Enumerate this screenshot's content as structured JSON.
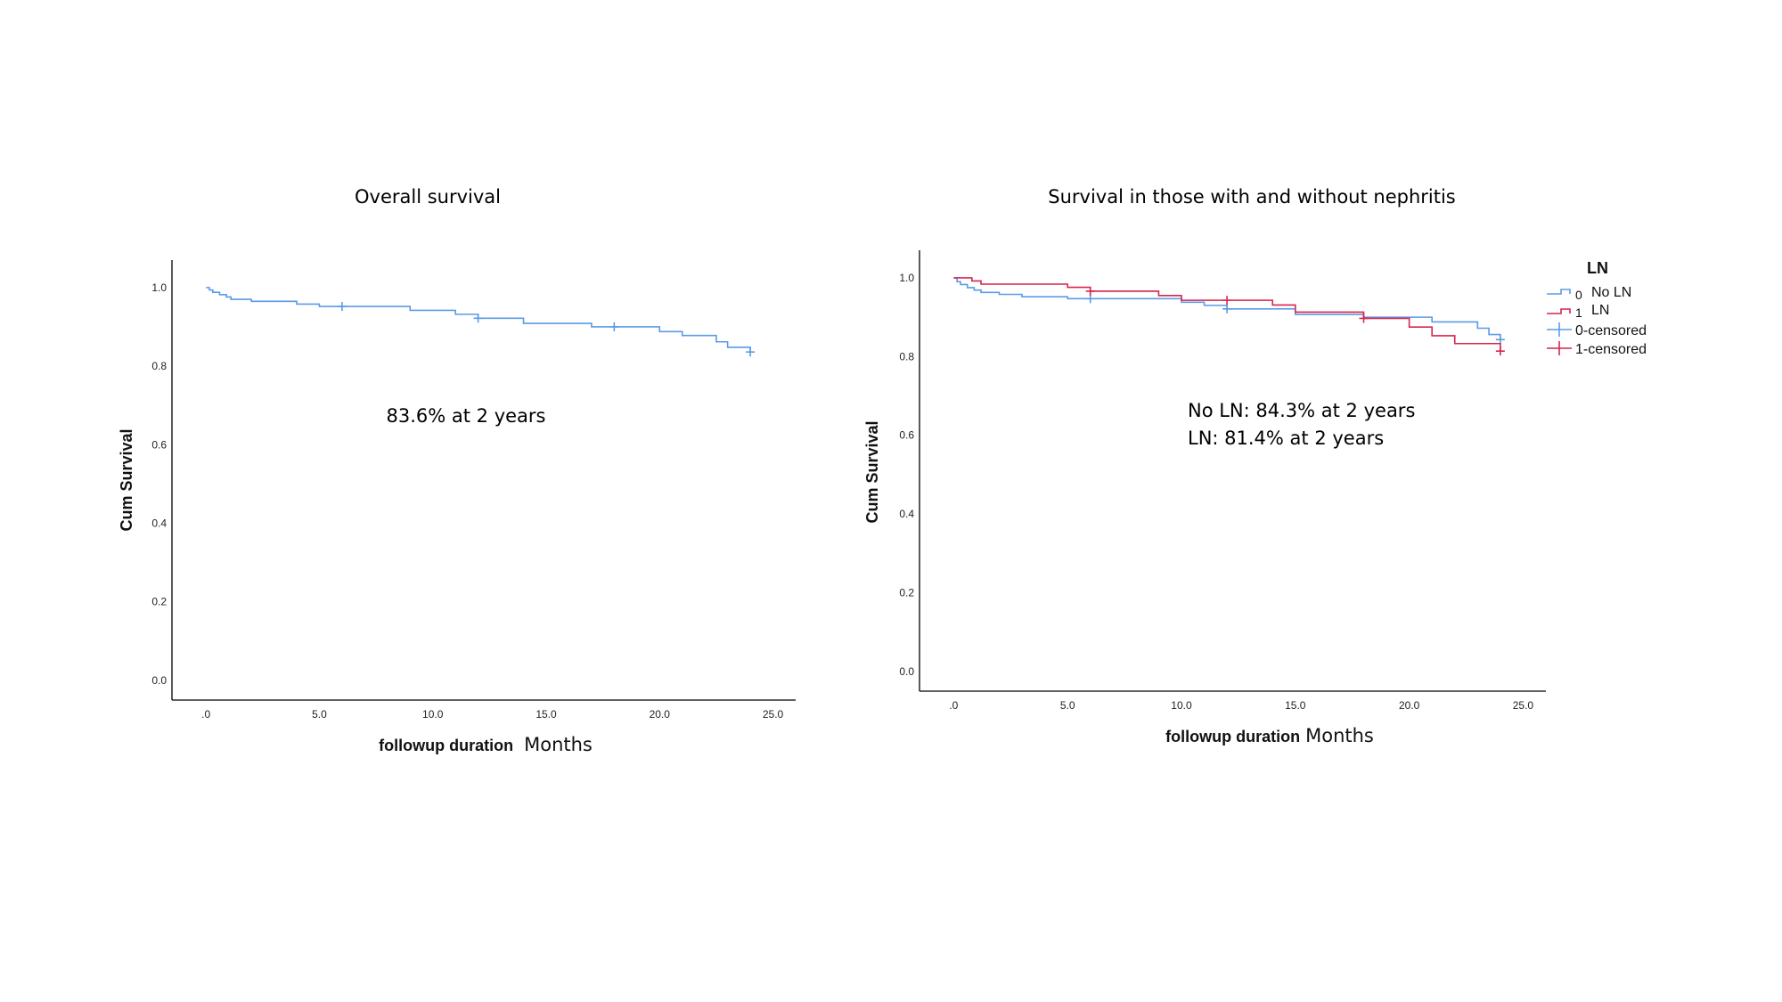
{
  "colors": {
    "no_ln": "#5b9be6",
    "ln": "#d6254f",
    "axis": "#000000"
  },
  "chart_data": [
    {
      "type": "line",
      "title": "Overall survival",
      "xlabel": "followup duration",
      "xunit": "Months",
      "ylabel": "Cum Survival",
      "xlim": [
        -1.5,
        26
      ],
      "ylim": [
        -0.05,
        1.07
      ],
      "xticks": [
        ".0",
        "5.0",
        "10.0",
        "15.0",
        "20.0",
        "25.0"
      ],
      "yticks": [
        "0.0",
        "0.2",
        "0.4",
        "0.6",
        "0.8",
        "1.0"
      ],
      "annotations": [
        "83.6% at 2 years"
      ],
      "series": [
        {
          "color": "#5b9be6",
          "steps": [
            [
              0,
              1.0
            ],
            [
              0.15,
              0.994
            ],
            [
              0.3,
              0.988
            ],
            [
              0.6,
              0.982
            ],
            [
              0.9,
              0.976
            ],
            [
              1.1,
              0.97
            ],
            [
              2.0,
              0.965
            ],
            [
              4.0,
              0.958
            ],
            [
              5.0,
              0.952
            ],
            [
              9.0,
              0.942
            ],
            [
              11.0,
              0.932
            ],
            [
              12.0,
              0.922
            ],
            [
              14.0,
              0.909
            ],
            [
              17.0,
              0.9
            ],
            [
              20.0,
              0.888
            ],
            [
              21.0,
              0.878
            ],
            [
              22.5,
              0.862
            ],
            [
              23.0,
              0.848
            ],
            [
              24.0,
              0.836
            ]
          ],
          "censored": [
            [
              6.0,
              0.952
            ],
            [
              12.0,
              0.922
            ],
            [
              18.0,
              0.9
            ],
            [
              24.0,
              0.836
            ]
          ]
        }
      ]
    },
    {
      "type": "line",
      "title": "Survival in those with and without nephritis",
      "xlabel": "followup duration",
      "xunit": "Months",
      "ylabel": "Cum Survival",
      "xlim": [
        -1.5,
        26
      ],
      "ylim": [
        -0.05,
        1.07
      ],
      "xticks": [
        ".0",
        "5.0",
        "10.0",
        "15.0",
        "20.0",
        "25.0"
      ],
      "yticks": [
        "0.0",
        "0.2",
        "0.4",
        "0.6",
        "0.8",
        "1.0"
      ],
      "annotations": [
        "No LN: 84.3% at 2 years",
        "LN: 81.4% at 2 years"
      ],
      "legend": {
        "title": "LN",
        "position": "right",
        "items": [
          {
            "code": "0",
            "label": "No LN",
            "kind": "line",
            "color": "#5b9be6"
          },
          {
            "code": "1",
            "label": "LN",
            "kind": "line",
            "color": "#d6254f"
          },
          {
            "code": "",
            "label": "0-censored",
            "kind": "censor",
            "color": "#5b9be6"
          },
          {
            "code": "",
            "label": "1-censored",
            "kind": "censor",
            "color": "#d6254f"
          }
        ]
      },
      "series": [
        {
          "color": "#5b9be6",
          "steps": [
            [
              0,
              1.0
            ],
            [
              0.15,
              0.99
            ],
            [
              0.3,
              0.983
            ],
            [
              0.6,
              0.975
            ],
            [
              0.9,
              0.969
            ],
            [
              1.2,
              0.963
            ],
            [
              2.0,
              0.958
            ],
            [
              3.0,
              0.952
            ],
            [
              5.0,
              0.947
            ],
            [
              10.0,
              0.938
            ],
            [
              11.0,
              0.93
            ],
            [
              12.0,
              0.921
            ],
            [
              15.0,
              0.907
            ],
            [
              18.0,
              0.9
            ],
            [
              21.0,
              0.888
            ],
            [
              23.0,
              0.872
            ],
            [
              23.5,
              0.856
            ],
            [
              24.0,
              0.843
            ]
          ],
          "censored": [
            [
              6.0,
              0.947
            ],
            [
              12.0,
              0.921
            ],
            [
              24.0,
              0.843
            ]
          ]
        },
        {
          "color": "#d6254f",
          "steps": [
            [
              0,
              1.0
            ],
            [
              0.8,
              0.992
            ],
            [
              1.2,
              0.984
            ],
            [
              5.0,
              0.976
            ],
            [
              6.0,
              0.966
            ],
            [
              9.0,
              0.955
            ],
            [
              10.0,
              0.943
            ],
            [
              14.0,
              0.931
            ],
            [
              15.0,
              0.913
            ],
            [
              18.0,
              0.897
            ],
            [
              20.0,
              0.875
            ],
            [
              21.0,
              0.853
            ],
            [
              22.0,
              0.833
            ],
            [
              24.0,
              0.814
            ]
          ],
          "censored": [
            [
              6.0,
              0.966
            ],
            [
              12.0,
              0.943
            ],
            [
              18.0,
              0.897
            ],
            [
              24.0,
              0.814
            ]
          ]
        }
      ]
    }
  ]
}
